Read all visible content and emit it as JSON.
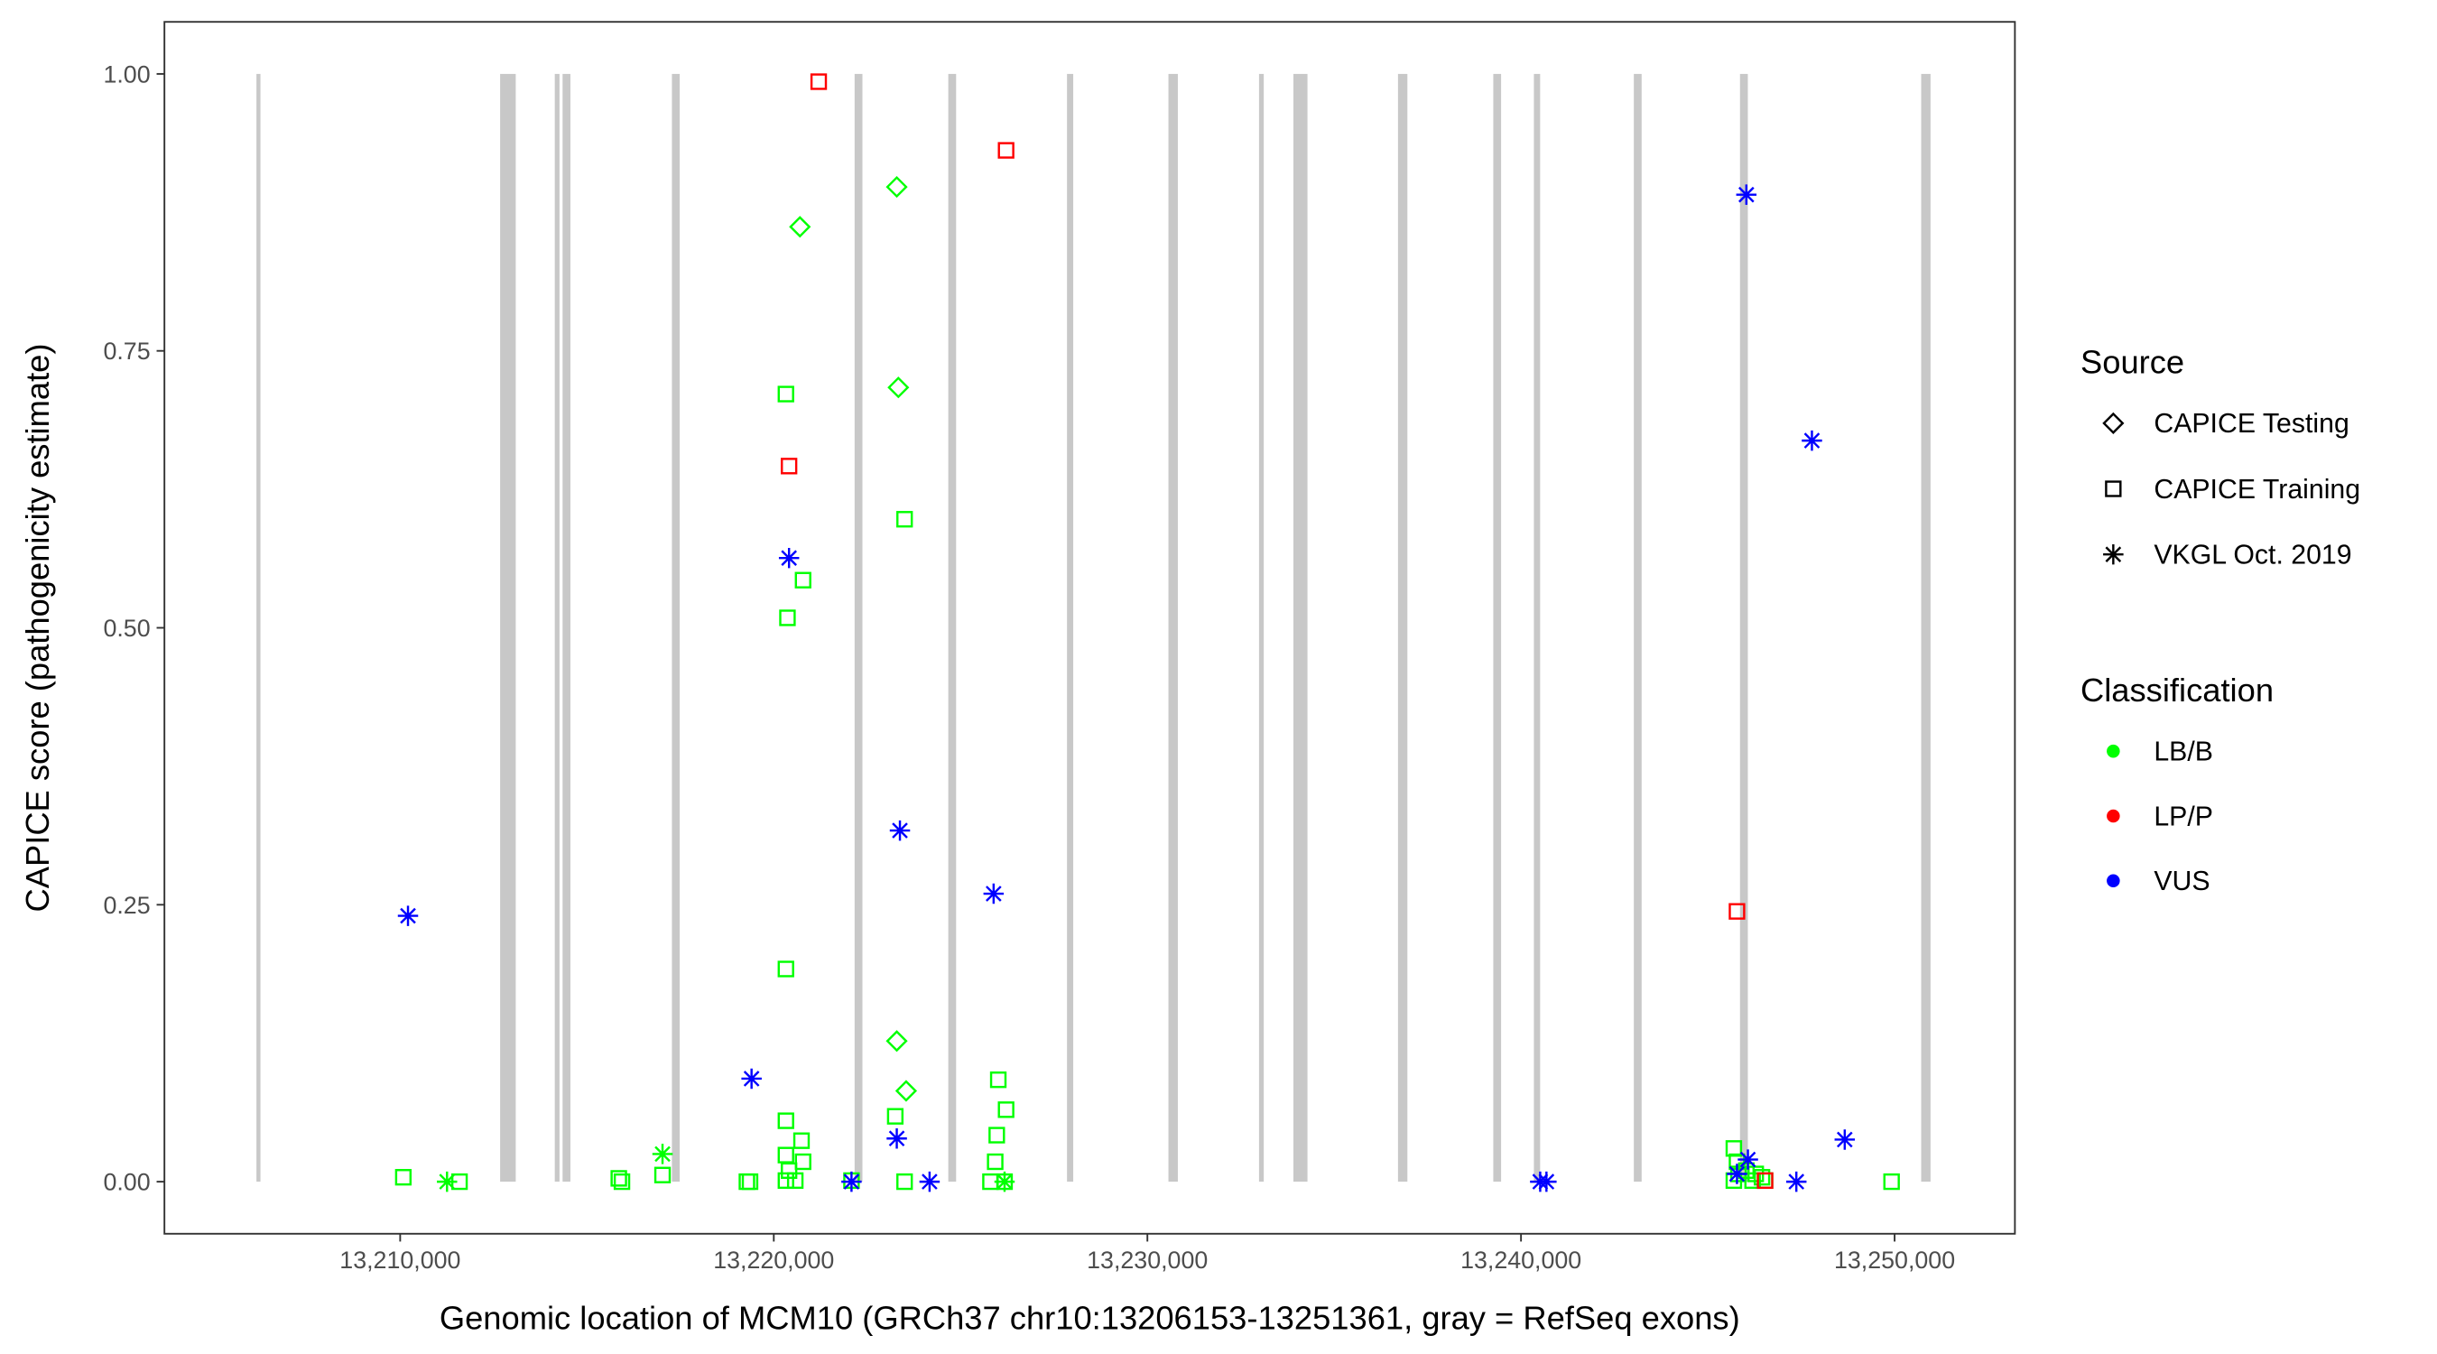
{
  "chart_data": {
    "type": "scatter",
    "title": "",
    "xlabel": "Genomic location of MCM10 (GRCh37 chr10:13206153-13251361, gray = RefSeq exons)",
    "ylabel": "CAPICE score (pathogenicity estimate)",
    "xlim": [
      13203690,
      13253220
    ],
    "ylim": [
      -0.047,
      1.047
    ],
    "xticks": [
      13210000,
      13220000,
      13230000,
      13240000,
      13250000
    ],
    "xtick_labels": [
      "13,210,000",
      "13,220,000",
      "13,230,000",
      "13,240,000",
      "13,250,000"
    ],
    "yticks": [
      0,
      0.25,
      0.5,
      0.75,
      1.0
    ],
    "ytick_labels": [
      "0.00",
      "0.25",
      "0.50",
      "0.75",
      "1.00"
    ],
    "grid": false,
    "exon_color": "#c8c8c8",
    "exons": [
      [
        13206153,
        13206260
      ],
      [
        13212675,
        13213093
      ],
      [
        13214138,
        13214264
      ],
      [
        13214347,
        13214556
      ],
      [
        13217273,
        13217482
      ],
      [
        13222163,
        13222372
      ],
      [
        13224671,
        13224880
      ],
      [
        13227848,
        13228015
      ],
      [
        13230564,
        13230815
      ],
      [
        13232988,
        13233114
      ],
      [
        13233908,
        13234285
      ],
      [
        13236708,
        13236959
      ],
      [
        13239258,
        13239467
      ],
      [
        13240345,
        13240512
      ],
      [
        13243020,
        13243229
      ],
      [
        13245862,
        13246071
      ],
      [
        13250711,
        13250962
      ]
    ],
    "legend": {
      "placement": "right",
      "source": {
        "title": "Source",
        "items": [
          {
            "label": "CAPICE Testing",
            "shape": "diamond"
          },
          {
            "label": "CAPICE Training",
            "shape": "square"
          },
          {
            "label": "VKGL Oct. 2019",
            "shape": "asterisk"
          }
        ]
      },
      "classification": {
        "title": "Classification",
        "items": [
          {
            "label": "LB/B",
            "color": "#00ff00"
          },
          {
            "label": "LP/P",
            "color": "#ff0000"
          },
          {
            "label": "VUS",
            "color": "#0000ff"
          }
        ]
      }
    },
    "points": [
      {
        "x": 13210084,
        "y": 0.004,
        "source": "CAPICE Training",
        "class": "LB/B"
      },
      {
        "x": 13211588,
        "y": 0.0,
        "source": "CAPICE Training",
        "class": "LB/B"
      },
      {
        "x": 13215852,
        "y": 0.003,
        "source": "CAPICE Training",
        "class": "LB/B"
      },
      {
        "x": 13215936,
        "y": 0.0,
        "source": "CAPICE Training",
        "class": "LB/B"
      },
      {
        "x": 13217022,
        "y": 0.006,
        "source": "CAPICE Training",
        "class": "LB/B"
      },
      {
        "x": 13219280,
        "y": 0.0,
        "source": "CAPICE Training",
        "class": "LB/B"
      },
      {
        "x": 13219364,
        "y": 0.0,
        "source": "CAPICE Training",
        "class": "LB/B"
      },
      {
        "x": 13220325,
        "y": 0.711,
        "source": "CAPICE Training",
        "class": "LB/B"
      },
      {
        "x": 13223501,
        "y": 0.598,
        "source": "CAPICE Training",
        "class": "LB/B"
      },
      {
        "x": 13220784,
        "y": 0.543,
        "source": "CAPICE Training",
        "class": "LB/B"
      },
      {
        "x": 13220366,
        "y": 0.509,
        "source": "CAPICE Training",
        "class": "LB/B"
      },
      {
        "x": 13220325,
        "y": 0.192,
        "source": "CAPICE Training",
        "class": "LB/B"
      },
      {
        "x": 13226009,
        "y": 0.092,
        "source": "CAPICE Training",
        "class": "LB/B"
      },
      {
        "x": 13226218,
        "y": 0.065,
        "source": "CAPICE Training",
        "class": "LB/B"
      },
      {
        "x": 13220325,
        "y": 0.055,
        "source": "CAPICE Training",
        "class": "LB/B"
      },
      {
        "x": 13223251,
        "y": 0.059,
        "source": "CAPICE Training",
        "class": "LB/B"
      },
      {
        "x": 13225968,
        "y": 0.042,
        "source": "CAPICE Training",
        "class": "LB/B"
      },
      {
        "x": 13220742,
        "y": 0.037,
        "source": "CAPICE Training",
        "class": "LB/B"
      },
      {
        "x": 13220325,
        "y": 0.024,
        "source": "CAPICE Training",
        "class": "LB/B"
      },
      {
        "x": 13220784,
        "y": 0.018,
        "source": "CAPICE Training",
        "class": "LB/B"
      },
      {
        "x": 13225926,
        "y": 0.018,
        "source": "CAPICE Training",
        "class": "LB/B"
      },
      {
        "x": 13220408,
        "y": 0.01,
        "source": "CAPICE Training",
        "class": "LB/B"
      },
      {
        "x": 13220325,
        "y": 0.001,
        "source": "CAPICE Training",
        "class": "LB/B"
      },
      {
        "x": 13220575,
        "y": 0.001,
        "source": "CAPICE Training",
        "class": "LB/B"
      },
      {
        "x": 13222080,
        "y": 0.001,
        "source": "CAPICE Training",
        "class": "LB/B"
      },
      {
        "x": 13223501,
        "y": 0.0,
        "source": "CAPICE Training",
        "class": "LB/B"
      },
      {
        "x": 13225800,
        "y": 0.0,
        "source": "CAPICE Training",
        "class": "LB/B"
      },
      {
        "x": 13226177,
        "y": 0.0,
        "source": "CAPICE Training",
        "class": "LB/B"
      },
      {
        "x": 13245697,
        "y": 0.03,
        "source": "CAPICE Training",
        "class": "LB/B"
      },
      {
        "x": 13245781,
        "y": 0.018,
        "source": "CAPICE Training",
        "class": "LB/B"
      },
      {
        "x": 13245822,
        "y": 0.007,
        "source": "CAPICE Training",
        "class": "LB/B"
      },
      {
        "x": 13246032,
        "y": 0.01,
        "source": "CAPICE Training",
        "class": "LB/B"
      },
      {
        "x": 13246283,
        "y": 0.007,
        "source": "CAPICE Training",
        "class": "LB/B"
      },
      {
        "x": 13246450,
        "y": 0.004,
        "source": "CAPICE Training",
        "class": "LB/B"
      },
      {
        "x": 13246199,
        "y": 0.001,
        "source": "CAPICE Training",
        "class": "LB/B"
      },
      {
        "x": 13246533,
        "y": 0.001,
        "source": "CAPICE Training",
        "class": "LB/B"
      },
      {
        "x": 13245697,
        "y": 0.001,
        "source": "CAPICE Training",
        "class": "LB/B"
      },
      {
        "x": 13249919,
        "y": 0.0,
        "source": "CAPICE Training",
        "class": "LB/B"
      },
      {
        "x": 13221202,
        "y": 0.993,
        "source": "CAPICE Training",
        "class": "LP/P"
      },
      {
        "x": 13226218,
        "y": 0.931,
        "source": "CAPICE Training",
        "class": "LP/P"
      },
      {
        "x": 13220408,
        "y": 0.646,
        "source": "CAPICE Training",
        "class": "LP/P"
      },
      {
        "x": 13245781,
        "y": 0.244,
        "source": "CAPICE Training",
        "class": "LP/P"
      },
      {
        "x": 13246533,
        "y": 0.001,
        "source": "CAPICE Training",
        "class": "LP/P"
      },
      {
        "x": 13223292,
        "y": 0.898,
        "source": "CAPICE Testing",
        "class": "LB/B"
      },
      {
        "x": 13220700,
        "y": 0.862,
        "source": "CAPICE Testing",
        "class": "LB/B"
      },
      {
        "x": 13223334,
        "y": 0.717,
        "source": "CAPICE Testing",
        "class": "LB/B"
      },
      {
        "x": 13223292,
        "y": 0.127,
        "source": "CAPICE Testing",
        "class": "LB/B"
      },
      {
        "x": 13223543,
        "y": 0.082,
        "source": "CAPICE Testing",
        "class": "LB/B"
      },
      {
        "x": 13217022,
        "y": 0.025,
        "source": "VKGL Oct. 2019",
        "class": "LB/B"
      },
      {
        "x": 13211254,
        "y": 0.0,
        "source": "VKGL Oct. 2019",
        "class": "LB/B"
      },
      {
        "x": 13226177,
        "y": 0.0,
        "source": "VKGL Oct. 2019",
        "class": "LB/B"
      },
      {
        "x": 13210209,
        "y": 0.24,
        "source": "VKGL Oct. 2019",
        "class": "VUS"
      },
      {
        "x": 13220408,
        "y": 0.563,
        "source": "VKGL Oct. 2019",
        "class": "VUS"
      },
      {
        "x": 13223376,
        "y": 0.317,
        "source": "VKGL Oct. 2019",
        "class": "VUS"
      },
      {
        "x": 13225884,
        "y": 0.26,
        "source": "VKGL Oct. 2019",
        "class": "VUS"
      },
      {
        "x": 13219405,
        "y": 0.093,
        "source": "VKGL Oct. 2019",
        "class": "VUS"
      },
      {
        "x": 13223292,
        "y": 0.039,
        "source": "VKGL Oct. 2019",
        "class": "VUS"
      },
      {
        "x": 13222080,
        "y": 0.0,
        "source": "VKGL Oct. 2019",
        "class": "VUS"
      },
      {
        "x": 13224170,
        "y": 0.0,
        "source": "VKGL Oct. 2019",
        "class": "VUS"
      },
      {
        "x": 13246032,
        "y": 0.891,
        "source": "VKGL Oct. 2019",
        "class": "VUS"
      },
      {
        "x": 13247787,
        "y": 0.669,
        "source": "VKGL Oct. 2019",
        "class": "VUS"
      },
      {
        "x": 13248665,
        "y": 0.038,
        "source": "VKGL Oct. 2019",
        "class": "VUS"
      },
      {
        "x": 13247370,
        "y": 0.0,
        "source": "VKGL Oct. 2019",
        "class": "VUS"
      },
      {
        "x": 13246074,
        "y": 0.02,
        "source": "VKGL Oct. 2019",
        "class": "VUS"
      },
      {
        "x": 13245781,
        "y": 0.007,
        "source": "VKGL Oct. 2019",
        "class": "VUS"
      },
      {
        "x": 13240514,
        "y": 0.0,
        "source": "VKGL Oct. 2019",
        "class": "VUS"
      },
      {
        "x": 13240681,
        "y": 0.0,
        "source": "VKGL Oct. 2019",
        "class": "VUS"
      }
    ]
  }
}
